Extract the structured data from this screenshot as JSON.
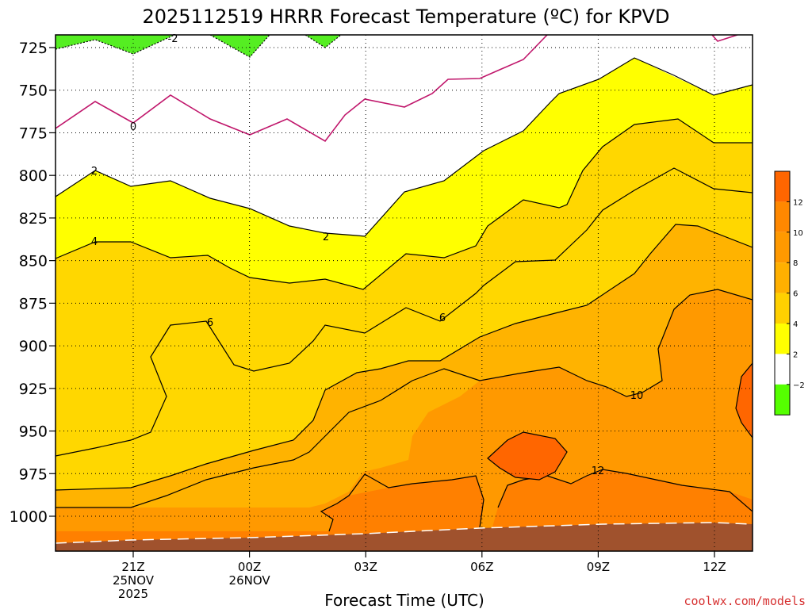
{
  "chart_data": {
    "type": "contour",
    "title": "2025112519 HRRR Forecast Temperature (ºC) for KPVD",
    "xlabel": "Forecast Time (UTC)",
    "credit": "coolwx.com/models",
    "yaxis": {
      "ticks": [
        "725",
        "750",
        "775",
        "800",
        "825",
        "850",
        "875",
        "900",
        "925",
        "950",
        "975",
        "1000"
      ],
      "values": [
        725,
        750,
        775,
        800,
        825,
        850,
        875,
        900,
        925,
        950,
        975,
        1000
      ]
    },
    "xaxis": {
      "ticks": [
        {
          "label": "21Z",
          "sub1": "25NOV",
          "sub2": "2025"
        },
        {
          "label": "00Z",
          "sub1": "26NOV",
          "sub2": ""
        },
        {
          "label": "03Z",
          "sub1": "",
          "sub2": ""
        },
        {
          "label": "06Z",
          "sub1": "",
          "sub2": ""
        },
        {
          "label": "09Z",
          "sub1": "",
          "sub2": ""
        },
        {
          "label": "12Z",
          "sub1": "",
          "sub2": ""
        }
      ]
    },
    "colorbar": {
      "labels": [
        "12",
        "10",
        "8",
        "6",
        "4",
        "2",
        "−2"
      ],
      "colors": [
        "#ff6600",
        "#ff8800",
        "#ff9900",
        "#ffb000",
        "#ffd000",
        "#ffff00",
        "#ffffff",
        "#55ff00"
      ]
    },
    "contour_labels": [
      "-2",
      "0",
      "2",
      "2",
      "4",
      "6",
      "6",
      "10",
      "12"
    ],
    "fill_colors": {
      "terrain": "#a0522d",
      "c_neg2": "#55ee22",
      "c_0_2": "#ffffff",
      "c_2_4": "#ffff00",
      "c_4_6": "#ffd700",
      "c_6_8": "#ffb300",
      "c_8_10": "#ff9900",
      "c_10_12": "#ff8000",
      "c_12_plus": "#ff6600",
      "zero_line": "#c0166b"
    }
  }
}
